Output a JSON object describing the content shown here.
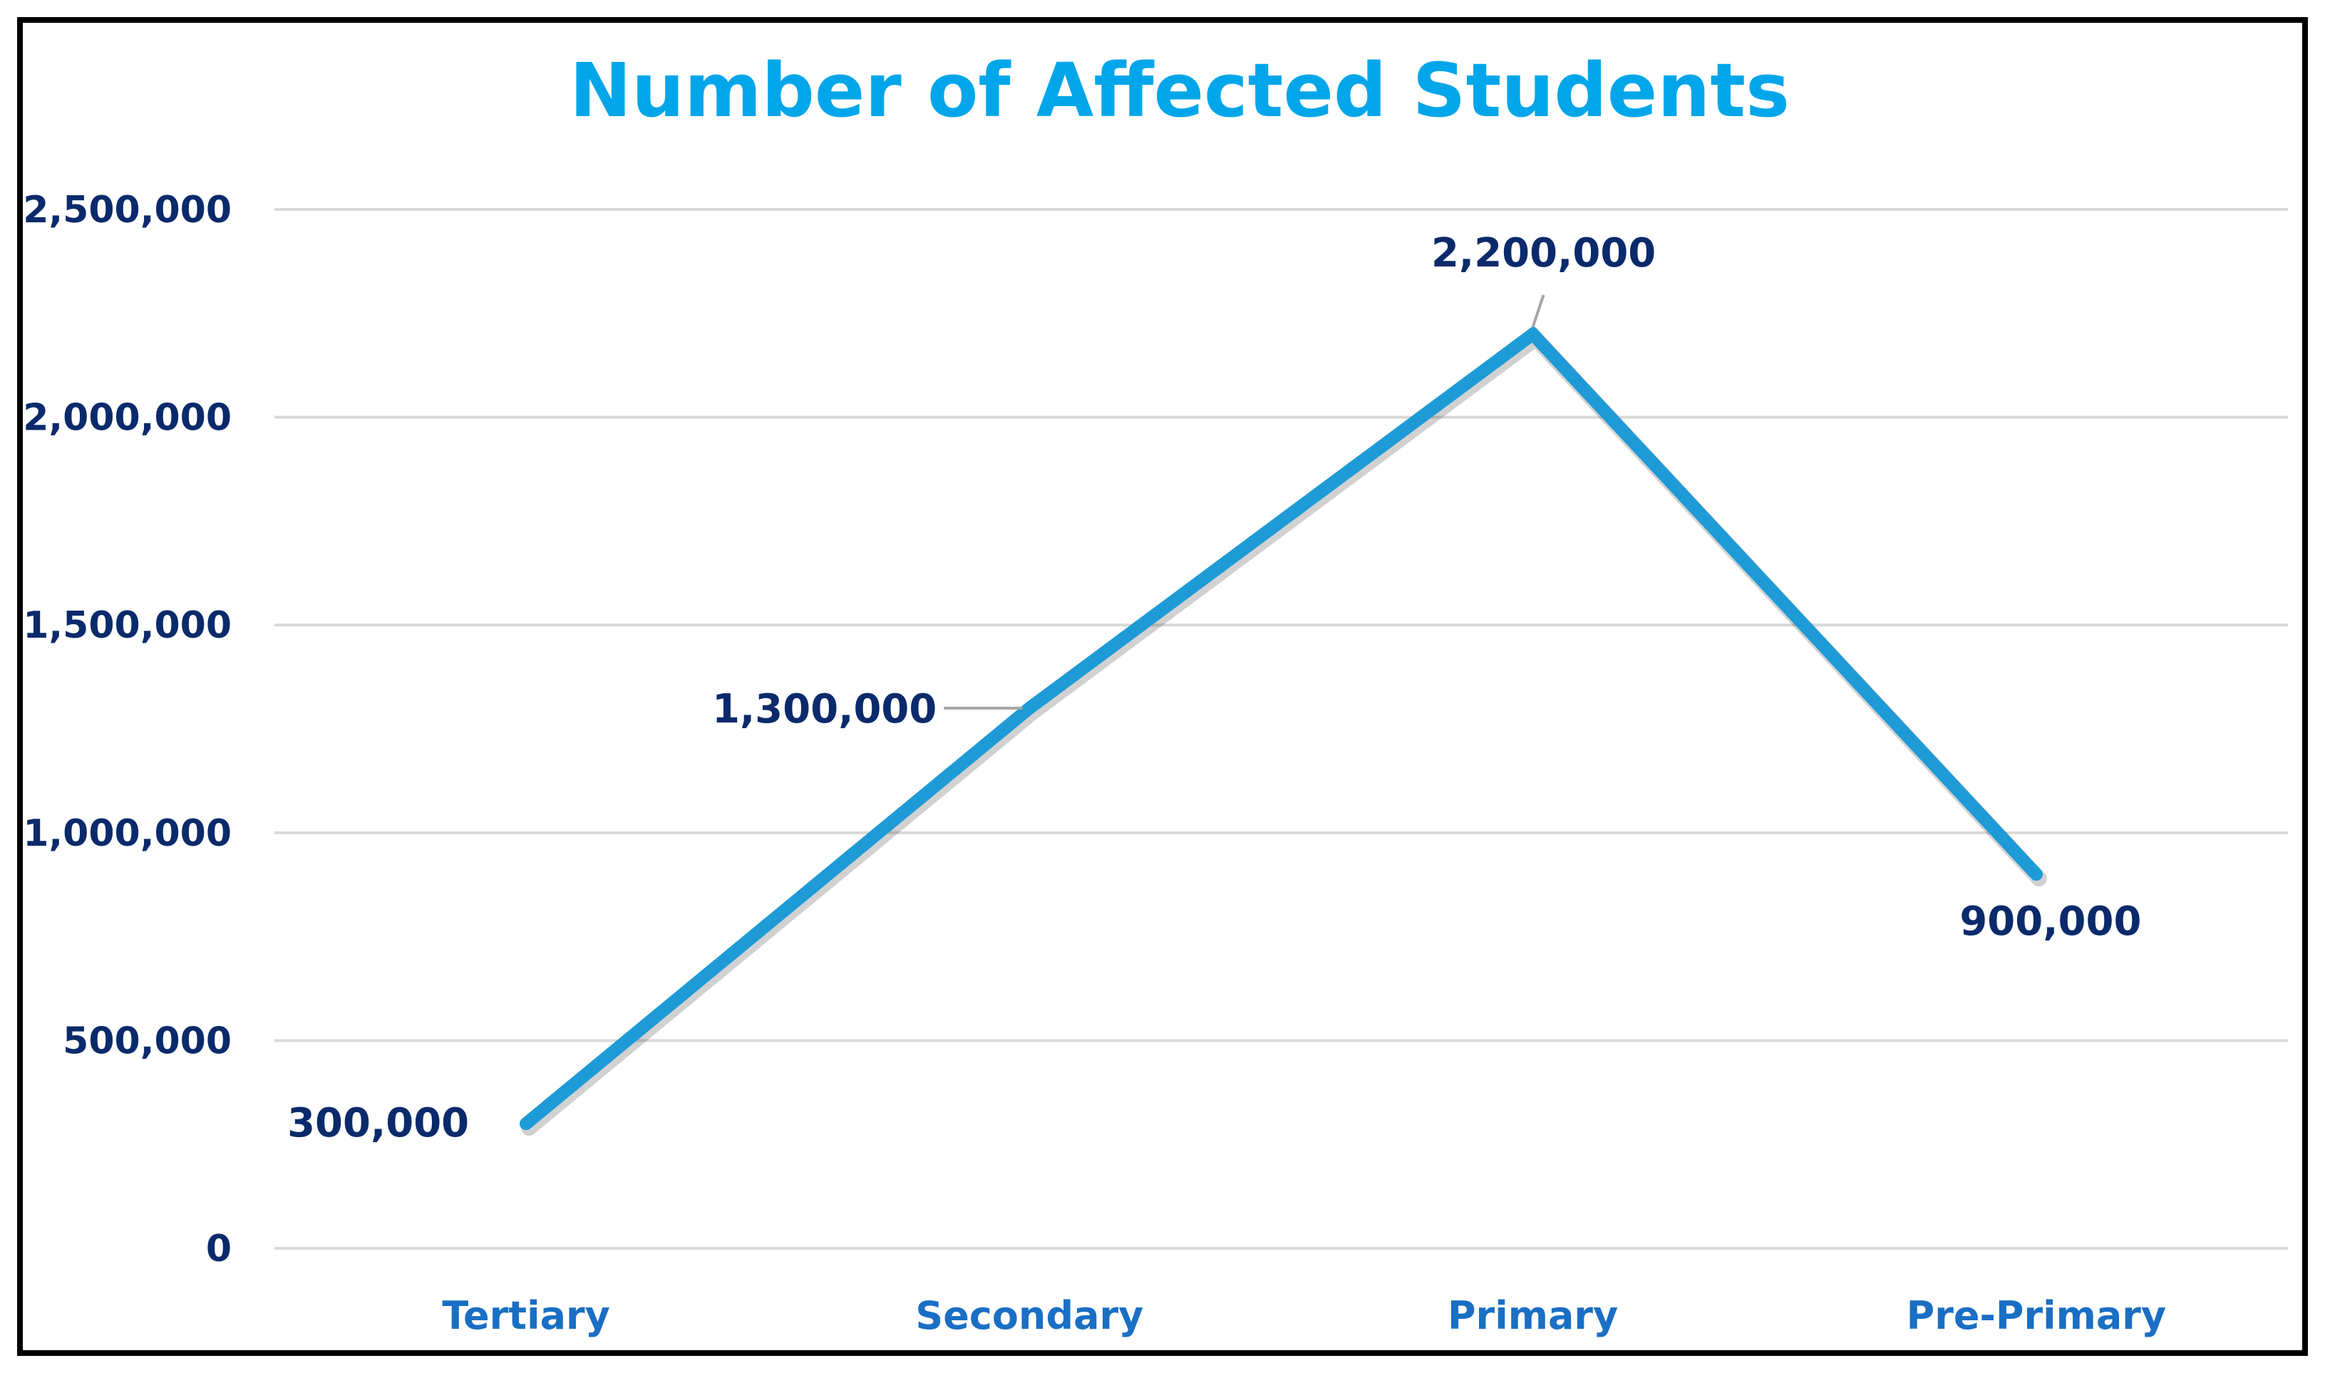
{
  "chart_data": {
    "type": "line",
    "title": "Number of Affected Students",
    "categories": [
      "Tertiary",
      "Secondary",
      "Primary",
      "Pre-Primary"
    ],
    "series": [
      {
        "values": [
          300000,
          1300000,
          2200000,
          900000
        ],
        "data_labels": [
          "300,000",
          "1,300,000",
          "2,200,000",
          "900,000"
        ]
      }
    ],
    "xlabel": "",
    "ylabel": "",
    "ylim": [
      0,
      2500000
    ],
    "y_ticks": [
      0,
      500000,
      1000000,
      1500000,
      2000000,
      2500000
    ],
    "y_tick_labels": [
      "0",
      "500,000",
      "1,000,000",
      "1,500,000",
      "2,000,000",
      "2,500,000"
    ],
    "grid": true,
    "legend": "none"
  },
  "colors": {
    "title": "#00A6E9",
    "line": "#1E9BD7",
    "y_ticks": "#0A2A6B",
    "x_ticks": "#1A6FC4",
    "data_labels": "#0A2A6B",
    "gridlines": "#D9D9D9",
    "frame": "#000000"
  }
}
